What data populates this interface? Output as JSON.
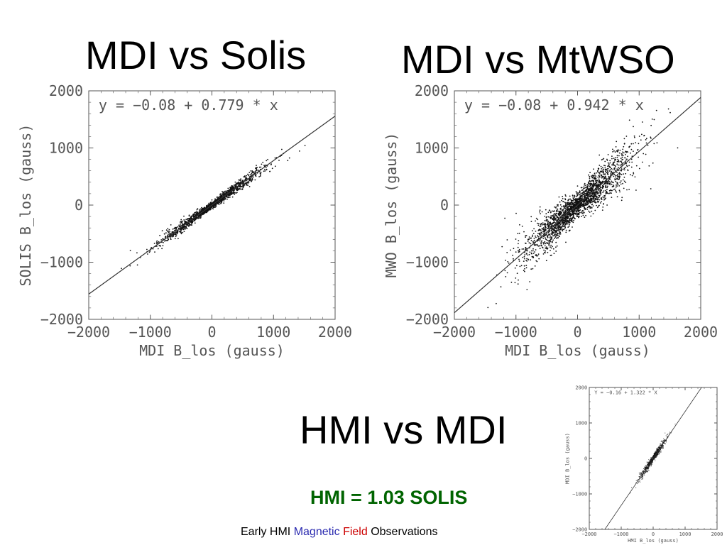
{
  "slide": {
    "title_left": "MDI vs Solis",
    "title_right": "MDI vs MtWSO",
    "title_hmi": "HMI vs MDI",
    "subtitle": "HMI = 1.03 SOLIS",
    "subtitle_color": "#006400",
    "footer": {
      "part1": "Early HMI",
      "part2": "Magnetic",
      "part3": "Field",
      "part4": "Observations",
      "color_magnetic": "#2b2bb0",
      "color_field": "#cc0000"
    }
  },
  "chart_data": [
    {
      "type": "scatter",
      "xlabel": "MDI B_los (gauss)",
      "ylabel": "SOLIS B_los (gauss)",
      "annotation": "y = −0.08 + 0.779 * x",
      "fit": {
        "intercept": -0.08,
        "slope": 0.779
      },
      "xlim": [
        -2000,
        2000
      ],
      "ylim": [
        -2000,
        2000
      ],
      "xticks": [
        -2000,
        -1000,
        0,
        1000,
        2000
      ],
      "yticks": [
        -2000,
        -1000,
        0,
        1000,
        2000
      ],
      "xtick_labels": [
        "−2000",
        "−1000",
        "0",
        "1000",
        "2000"
      ],
      "ytick_labels": [
        "−2000",
        "−1000",
        "0",
        "1000",
        "2000"
      ],
      "scatter_spread": 70,
      "x_spread": 420,
      "point_count": 1400
    },
    {
      "type": "scatter",
      "xlabel": "MDI B_los (gauss)",
      "ylabel": "MWO B_los (gauss)",
      "annotation": "y = −0.08 + 0.942 * x",
      "fit": {
        "intercept": -0.08,
        "slope": 0.942
      },
      "xlim": [
        -2000,
        2000
      ],
      "ylim": [
        -2000,
        2000
      ],
      "xticks": [
        -2000,
        -1000,
        0,
        1000,
        2000
      ],
      "yticks": [
        -2000,
        -1000,
        0,
        1000,
        2000
      ],
      "xtick_labels": [
        "−2000",
        "−1000",
        "0",
        "1000",
        "2000"
      ],
      "ytick_labels": [
        "−2000",
        "−1000",
        "0",
        "1000",
        "2000"
      ],
      "scatter_spread": 260,
      "x_spread": 450,
      "point_count": 2200
    },
    {
      "type": "scatter",
      "xlabel": "HMI B_los (gauss)",
      "ylabel": "MDI B_los (gauss)",
      "annotation": "Y = −0.16 + 1.322 * X",
      "fit": {
        "intercept": -0.16,
        "slope": 1.322
      },
      "xlim": [
        -2000,
        2000
      ],
      "ylim": [
        -2000,
        2000
      ],
      "xticks": [
        -2000,
        -1000,
        0,
        1000,
        2000
      ],
      "yticks": [
        -2000,
        -1000,
        0,
        1000,
        2000
      ],
      "xtick_labels": [
        "−2000",
        "−1000",
        "0",
        "1000",
        "2000"
      ],
      "ytick_labels": [
        "−2000",
        "−1000",
        "0",
        "1000",
        "2000"
      ],
      "scatter_spread": 110,
      "x_spread": 200,
      "point_count": 900
    }
  ]
}
